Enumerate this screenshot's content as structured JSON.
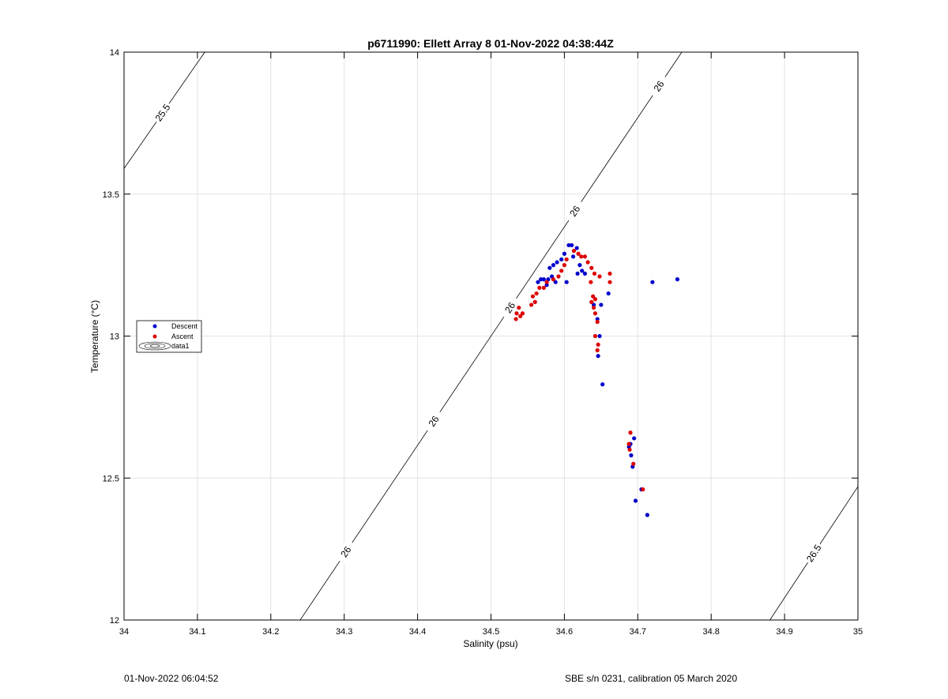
{
  "chart_data": {
    "type": "scatter",
    "title": "p6711990: Ellett Array 8 01-Nov-2022 04:38:44Z",
    "xlabel": "Salinity (psu)",
    "ylabel": "Temperature (°C)",
    "xlim": [
      34,
      35
    ],
    "ylim": [
      12,
      14
    ],
    "xticks": [
      "34",
      "34.1",
      "34.2",
      "34.3",
      "34.4",
      "34.5",
      "34.6",
      "34.7",
      "34.8",
      "34.9",
      "35"
    ],
    "yticks": [
      "12",
      "12.5",
      "13",
      "13.5",
      "14"
    ],
    "grid": true,
    "legend_position": "left",
    "legend": [
      "Descent",
      "Ascent",
      "data1"
    ],
    "series": [
      {
        "name": "Descent",
        "color": "#0000cc",
        "points": [
          [
            34.754,
            13.2
          ],
          [
            34.72,
            13.19
          ],
          [
            34.66,
            13.15
          ],
          [
            34.65,
            13.11
          ],
          [
            34.64,
            13.11
          ],
          [
            34.645,
            13.06
          ],
          [
            34.648,
            13.0
          ],
          [
            34.646,
            12.93
          ],
          [
            34.652,
            12.83
          ],
          [
            34.695,
            12.64
          ],
          [
            34.69,
            12.62
          ],
          [
            34.688,
            12.61
          ],
          [
            34.691,
            12.58
          ],
          [
            34.693,
            12.54
          ],
          [
            34.705,
            12.46
          ],
          [
            34.697,
            12.42
          ],
          [
            34.713,
            12.37
          ],
          [
            34.61,
            13.32
          ],
          [
            34.606,
            13.32
          ],
          [
            34.617,
            13.31
          ],
          [
            34.6,
            13.29
          ],
          [
            34.612,
            13.28
          ],
          [
            34.596,
            13.27
          ],
          [
            34.59,
            13.26
          ],
          [
            34.585,
            13.25
          ],
          [
            34.58,
            13.24
          ],
          [
            34.621,
            13.25
          ],
          [
            34.624,
            13.23
          ],
          [
            34.618,
            13.22
          ],
          [
            34.628,
            13.22
          ],
          [
            34.583,
            13.21
          ],
          [
            34.578,
            13.2
          ],
          [
            34.572,
            13.2
          ],
          [
            34.568,
            13.2
          ],
          [
            34.564,
            13.19
          ],
          [
            34.588,
            13.19
          ],
          [
            34.603,
            13.19
          ],
          [
            34.576,
            13.18
          ]
        ]
      },
      {
        "name": "Ascent",
        "color": "#dd0000",
        "points": [
          [
            34.534,
            13.06
          ],
          [
            34.535,
            13.08
          ],
          [
            34.538,
            13.1
          ],
          [
            34.54,
            13.07
          ],
          [
            34.543,
            13.08
          ],
          [
            34.555,
            13.11
          ],
          [
            34.56,
            13.12
          ],
          [
            34.557,
            13.14
          ],
          [
            34.562,
            13.15
          ],
          [
            34.566,
            13.17
          ],
          [
            34.572,
            13.17
          ],
          [
            34.576,
            13.19
          ],
          [
            34.585,
            13.2
          ],
          [
            34.592,
            13.21
          ],
          [
            34.596,
            13.23
          ],
          [
            34.6,
            13.25
          ],
          [
            34.603,
            13.27
          ],
          [
            34.613,
            13.3
          ],
          [
            34.619,
            13.29
          ],
          [
            34.623,
            13.28
          ],
          [
            34.628,
            13.28
          ],
          [
            34.632,
            13.26
          ],
          [
            34.637,
            13.24
          ],
          [
            34.641,
            13.22
          ],
          [
            34.648,
            13.21
          ],
          [
            34.662,
            13.22
          ],
          [
            34.662,
            13.19
          ],
          [
            34.636,
            13.19
          ],
          [
            34.639,
            13.14
          ],
          [
            34.642,
            13.13
          ],
          [
            34.637,
            13.12
          ],
          [
            34.64,
            13.1
          ],
          [
            34.642,
            13.08
          ],
          [
            34.645,
            13.05
          ],
          [
            34.642,
            13.0
          ],
          [
            34.646,
            12.97
          ],
          [
            34.645,
            12.95
          ],
          [
            34.69,
            12.66
          ],
          [
            34.688,
            12.62
          ],
          [
            34.689,
            12.6
          ],
          [
            34.694,
            12.55
          ],
          [
            34.707,
            12.46
          ]
        ]
      }
    ],
    "contours": [
      {
        "label": "25.5",
        "points": [
          [
            34.0,
            13.59
          ],
          [
            34.11,
            14.0
          ]
        ],
        "label_at": 0.48
      },
      {
        "label": "26",
        "points": [
          [
            34.24,
            12.0
          ],
          [
            34.76,
            14.0
          ]
        ],
        "label_ats": [
          0.12,
          0.35,
          0.55,
          0.72,
          0.94
        ]
      },
      {
        "label": "26.5",
        "points": [
          [
            34.88,
            12.0
          ],
          [
            35.0,
            12.47
          ]
        ],
        "label_at": 0.5
      }
    ]
  },
  "footer": {
    "left": "01-Nov-2022 06:04:52",
    "right": "SBE s/n 0231, calibration 05 March 2020"
  }
}
